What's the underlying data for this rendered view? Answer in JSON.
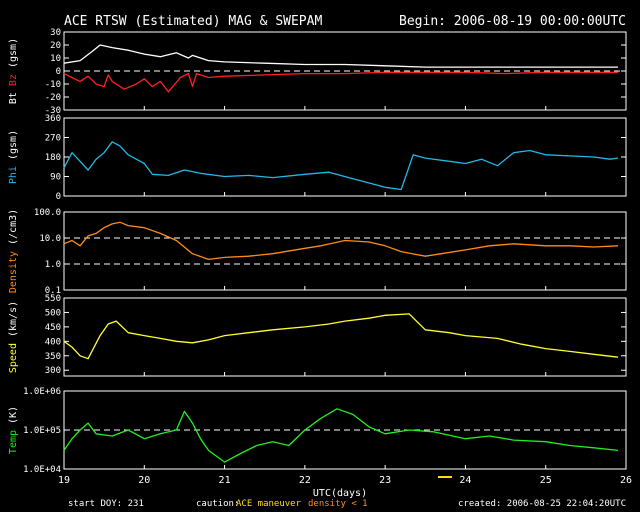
{
  "header": {
    "title": "ACE RTSW (Estimated) MAG & SWEPAM",
    "begin": "Begin: 2006-08-19 00:00:00UTC"
  },
  "footer": {
    "start_doy": "start DOY: 231",
    "caution_label": "caution:",
    "ace_maneuver": "ACE maneuver",
    "density_note": "density < 1",
    "created": "created: 2006-08-25 22:04:20UTC"
  },
  "colors": {
    "bt": "#ffffff",
    "bz": "#ff2020",
    "phi": "#22b8e6",
    "density": "#ff8c1a",
    "speed": "#ffff33",
    "temp": "#22ee22",
    "maneuver": "#ffdd00",
    "frame": "#ffffff"
  },
  "chart_data": {
    "type": "line",
    "xlabel": "UTC(days)",
    "x_ticks": [
      "19",
      "20",
      "21",
      "22",
      "23",
      "24",
      "25",
      "26"
    ],
    "xlim": [
      19,
      26
    ],
    "panels": [
      {
        "id": "mag",
        "ylabel_parts": [
          {
            "text": "Bt",
            "color": "#ffffff"
          },
          {
            "text": "Bz",
            "color": "#ff2020"
          }
        ],
        "ylabel_unit": "(gsm)",
        "ylim": [
          -30,
          30
        ],
        "y_ticks": [
          30,
          20,
          10,
          0,
          -10,
          -20,
          -30
        ],
        "y_tick_labels": [
          "30",
          "20",
          "10",
          "0",
          "-10",
          "-20",
          "-30"
        ],
        "dashed": [
          0
        ],
        "series": [
          {
            "name": "Bt",
            "color": "#ffffff",
            "x": [
              19.0,
              19.2,
              19.35,
              19.45,
              19.6,
              19.8,
              20.0,
              20.2,
              20.4,
              20.55,
              20.6,
              20.8,
              21.0,
              21.5,
              22.0,
              22.5,
              23.0,
              23.5,
              24.0,
              24.5,
              25.0,
              25.5,
              25.9
            ],
            "y": [
              6,
              8,
              15,
              20,
              18,
              16,
              13,
              11,
              14,
              10,
              12,
              8,
              7,
              6,
              5,
              5,
              4,
              3,
              3,
              3,
              3,
              3,
              3
            ]
          },
          {
            "name": "Bz",
            "color": "#ff2020",
            "x": [
              19.0,
              19.1,
              19.2,
              19.3,
              19.4,
              19.5,
              19.55,
              19.6,
              19.75,
              19.9,
              20.0,
              20.1,
              20.2,
              20.3,
              20.45,
              20.55,
              20.6,
              20.65,
              20.8,
              21.0,
              21.5,
              22.0,
              22.5,
              23.0,
              23.5,
              24.0,
              24.5,
              25.0,
              25.5,
              25.9
            ],
            "y": [
              -2,
              -5,
              -8,
              -4,
              -10,
              -12,
              -3,
              -8,
              -14,
              -10,
              -6,
              -12,
              -8,
              -16,
              -5,
              -2,
              -12,
              -2,
              -5,
              -4,
              -3,
              -2,
              -2,
              -1,
              -1,
              -1,
              -2,
              -1,
              -1,
              -1
            ]
          }
        ]
      },
      {
        "id": "phi",
        "ylabel_parts": [
          {
            "text": "Phi",
            "color": "#22b8e6"
          }
        ],
        "ylabel_unit": "(gsm)",
        "ylim": [
          0,
          360
        ],
        "y_ticks": [
          360,
          270,
          180,
          90,
          0
        ],
        "y_tick_labels": [
          "360",
          "270",
          "180",
          "90",
          "0"
        ],
        "dashed": [],
        "series": [
          {
            "name": "Phi",
            "color": "#22b8e6",
            "x": [
              19.0,
              19.1,
              19.2,
              19.3,
              19.4,
              19.5,
              19.6,
              19.7,
              19.8,
              19.9,
              20.0,
              20.1,
              20.3,
              20.5,
              20.7,
              21.0,
              21.3,
              21.6,
              22.0,
              22.3,
              22.6,
              22.8,
              23.0,
              23.2,
              23.35,
              23.5,
              23.8,
              24.0,
              24.2,
              24.4,
              24.6,
              24.8,
              25.0,
              25.3,
              25.6,
              25.8,
              25.9
            ],
            "y": [
              130,
              200,
              160,
              120,
              170,
              200,
              250,
              230,
              190,
              170,
              150,
              100,
              95,
              120,
              105,
              90,
              95,
              85,
              100,
              110,
              80,
              60,
              40,
              30,
              190,
              175,
              160,
              150,
              170,
              140,
              200,
              210,
              190,
              185,
              180,
              170,
              175
            ]
          }
        ]
      },
      {
        "id": "density",
        "ylabel_parts": [
          {
            "text": "Density",
            "color": "#ff8c1a"
          }
        ],
        "ylabel_unit": "(/cm3)",
        "ylim": [
          0.1,
          100
        ],
        "log": true,
        "y_ticks": [
          100,
          10,
          1,
          0.1
        ],
        "y_tick_labels": [
          "100.0",
          "10.0",
          "1.0",
          "0.1"
        ],
        "dashed": [
          10,
          1
        ],
        "series": [
          {
            "name": "Density",
            "color": "#ff8c1a",
            "x": [
              19.0,
              19.1,
              19.2,
              19.3,
              19.4,
              19.5,
              19.6,
              19.7,
              19.8,
              20.0,
              20.2,
              20.4,
              20.6,
              20.8,
              21.0,
              21.3,
              21.6,
              22.0,
              22.2,
              22.5,
              22.8,
              23.0,
              23.2,
              23.5,
              23.7,
              24.0,
              24.3,
              24.6,
              25.0,
              25.3,
              25.6,
              25.9
            ],
            "y": [
              6,
              8,
              5,
              12,
              15,
              25,
              35,
              40,
              30,
              25,
              15,
              8,
              2.5,
              1.5,
              1.8,
              2,
              2.5,
              4,
              5,
              8,
              7,
              5,
              3,
              2,
              2.5,
              3.5,
              5,
              6,
              5,
              5,
              4.5,
              5
            ]
          }
        ]
      },
      {
        "id": "speed",
        "ylabel_parts": [
          {
            "text": "Speed",
            "color": "#ffff33"
          }
        ],
        "ylabel_unit": "(km/s)",
        "ylim": [
          280,
          550
        ],
        "y_ticks": [
          550,
          500,
          450,
          400,
          350,
          300
        ],
        "y_tick_labels": [
          "550",
          "500",
          "450",
          "400",
          "350",
          "300"
        ],
        "dashed": [],
        "series": [
          {
            "name": "Speed",
            "color": "#ffff33",
            "x": [
              19.0,
              19.1,
              19.2,
              19.3,
              19.45,
              19.55,
              19.65,
              19.8,
              20.0,
              20.2,
              20.4,
              20.6,
              20.8,
              21.0,
              21.3,
              21.6,
              22.0,
              22.3,
              22.5,
              22.8,
              23.0,
              23.3,
              23.5,
              23.8,
              24.0,
              24.4,
              24.7,
              25.0,
              25.3,
              25.6,
              25.9
            ],
            "y": [
              400,
              380,
              350,
              340,
              420,
              460,
              470,
              430,
              420,
              410,
              400,
              395,
              405,
              420,
              430,
              440,
              450,
              460,
              470,
              480,
              490,
              495,
              440,
              430,
              420,
              410,
              390,
              375,
              365,
              355,
              345
            ]
          }
        ]
      },
      {
        "id": "temp",
        "ylabel_parts": [
          {
            "text": "Temp",
            "color": "#22ee22"
          }
        ],
        "ylabel_unit": "(K)",
        "ylim": [
          10000,
          1000000
        ],
        "log": true,
        "y_ticks": [
          1000000,
          100000,
          10000
        ],
        "y_tick_labels": [
          "1.0E+06",
          "1.0E+05",
          "1.0E+04"
        ],
        "dashed": [
          100000
        ],
        "series": [
          {
            "name": "Temp",
            "color": "#22ee22",
            "x": [
              19.0,
              19.1,
              19.2,
              19.3,
              19.4,
              19.6,
              19.8,
              20.0,
              20.2,
              20.4,
              20.5,
              20.6,
              20.7,
              20.8,
              21.0,
              21.2,
              21.4,
              21.6,
              21.8,
              22.0,
              22.2,
              22.4,
              22.6,
              22.8,
              23.0,
              23.3,
              23.6,
              24.0,
              24.3,
              24.6,
              25.0,
              25.3,
              25.6,
              25.9
            ],
            "y": [
              30000,
              60000,
              100000,
              150000,
              80000,
              70000,
              100000,
              60000,
              80000,
              100000,
              300000,
              150000,
              60000,
              30000,
              15000,
              25000,
              40000,
              50000,
              40000,
              100000,
              200000,
              350000,
              250000,
              120000,
              80000,
              100000,
              90000,
              60000,
              70000,
              55000,
              50000,
              40000,
              35000,
              30000
            ]
          }
        ]
      }
    ]
  }
}
